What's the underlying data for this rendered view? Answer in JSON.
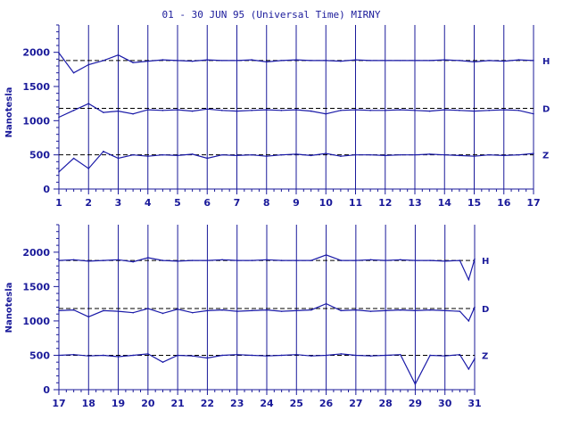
{
  "chart_data": {
    "type": "line",
    "title": "01 - 30 JUN 95 (Universal Time) MIRNY",
    "colors": {
      "axis": "#1a1a9a",
      "trace": "#1a1aa8",
      "baseline": "#000000",
      "background": "#ffffff"
    },
    "panels": [
      {
        "ylabel": "Nanotesla",
        "ylim": [
          0,
          2400
        ],
        "yticks": [
          0,
          500,
          1000,
          1500,
          2000
        ],
        "xlim": [
          1,
          17
        ],
        "xticks": [
          1,
          2,
          3,
          4,
          5,
          6,
          7,
          8,
          9,
          10,
          11,
          12,
          13,
          14,
          15,
          16,
          17
        ],
        "grid": true,
        "series": [
          {
            "name": "H",
            "baseline": 1880,
            "x": [
              1,
              1.5,
              2,
              2.5,
              3,
              3.5,
              4,
              4.5,
              5,
              5.5,
              6,
              6.5,
              7,
              7.5,
              8,
              8.5,
              9,
              9.5,
              10,
              10.5,
              11,
              11.5,
              12,
              12.5,
              13,
              13.5,
              14,
              14.5,
              15,
              15.5,
              16,
              16.5,
              17
            ],
            "values": [
              1990,
              1700,
              1820,
              1880,
              1960,
              1850,
              1870,
              1890,
              1880,
              1870,
              1890,
              1880,
              1880,
              1890,
              1860,
              1880,
              1890,
              1880,
              1880,
              1870,
              1890,
              1880,
              1880,
              1880,
              1880,
              1880,
              1890,
              1880,
              1860,
              1880,
              1870,
              1890,
              1880
            ]
          },
          {
            "name": "D",
            "baseline": 1180,
            "x": [
              1,
              1.5,
              2,
              2.5,
              3,
              3.5,
              4,
              4.5,
              5,
              5.5,
              6,
              6.5,
              7,
              7.5,
              8,
              8.5,
              9,
              9.5,
              10,
              10.5,
              11,
              11.5,
              12,
              12.5,
              13,
              13.5,
              14,
              14.5,
              15,
              15.5,
              16,
              16.5,
              17
            ],
            "values": [
              1050,
              1150,
              1250,
              1120,
              1140,
              1100,
              1160,
              1150,
              1160,
              1140,
              1170,
              1150,
              1140,
              1150,
              1160,
              1150,
              1160,
              1140,
              1100,
              1150,
              1160,
              1150,
              1150,
              1160,
              1150,
              1140,
              1160,
              1150,
              1140,
              1150,
              1160,
              1150,
              1100
            ]
          },
          {
            "name": "Z",
            "baseline": 500,
            "x": [
              1,
              1.5,
              2,
              2.5,
              3,
              3.5,
              4,
              4.5,
              5,
              5.5,
              6,
              6.5,
              7,
              7.5,
              8,
              8.5,
              9,
              9.5,
              10,
              10.5,
              11,
              11.5,
              12,
              12.5,
              13,
              13.5,
              14,
              14.5,
              15,
              15.5,
              16,
              16.5,
              17
            ],
            "values": [
              250,
              450,
              300,
              550,
              450,
              500,
              480,
              500,
              490,
              510,
              450,
              500,
              490,
              500,
              480,
              500,
              510,
              490,
              520,
              480,
              500,
              500,
              490,
              500,
              500,
              510,
              500,
              490,
              480,
              500,
              490,
              500,
              520
            ]
          }
        ]
      },
      {
        "ylabel": "Nanotesla",
        "ylim": [
          0,
          2400
        ],
        "yticks": [
          0,
          500,
          1000,
          1500,
          2000
        ],
        "xlim": [
          17,
          31
        ],
        "xticks": [
          17,
          18,
          19,
          20,
          21,
          22,
          23,
          24,
          25,
          26,
          27,
          28,
          29,
          30,
          31
        ],
        "grid": true,
        "series": [
          {
            "name": "H",
            "baseline": 1880,
            "x": [
              17,
              17.5,
              18,
              18.5,
              19,
              19.5,
              20,
              20.5,
              21,
              21.5,
              22,
              22.5,
              23,
              23.5,
              24,
              24.5,
              25,
              25.5,
              26,
              26.5,
              27,
              27.5,
              28,
              28.5,
              29,
              29.5,
              30,
              30.5,
              30.8,
              31
            ],
            "values": [
              1880,
              1890,
              1870,
              1880,
              1890,
              1860,
              1920,
              1880,
              1870,
              1880,
              1880,
              1890,
              1880,
              1880,
              1890,
              1880,
              1880,
              1880,
              1960,
              1880,
              1880,
              1890,
              1880,
              1890,
              1880,
              1880,
              1870,
              1880,
              1600,
              1900
            ]
          },
          {
            "name": "D",
            "baseline": 1180,
            "x": [
              17,
              17.5,
              18,
              18.5,
              19,
              19.5,
              20,
              20.5,
              21,
              21.5,
              22,
              22.5,
              23,
              23.5,
              24,
              24.5,
              25,
              25.5,
              26,
              26.5,
              27,
              27.5,
              28,
              28.5,
              29,
              29.5,
              30,
              30.5,
              30.8,
              31
            ],
            "values": [
              1150,
              1160,
              1060,
              1150,
              1140,
              1120,
              1180,
              1110,
              1170,
              1120,
              1150,
              1160,
              1140,
              1150,
              1160,
              1140,
              1150,
              1160,
              1250,
              1150,
              1160,
              1140,
              1150,
              1160,
              1150,
              1160,
              1150,
              1140,
              1000,
              1200
            ]
          },
          {
            "name": "Z",
            "baseline": 500,
            "x": [
              17,
              17.5,
              18,
              18.5,
              19,
              19.5,
              20,
              20.5,
              21,
              21.5,
              22,
              22.5,
              23,
              23.5,
              24,
              24.5,
              25,
              25.5,
              26,
              26.5,
              27,
              27.5,
              28,
              28.5,
              29,
              29.5,
              30,
              30.5,
              30.8,
              31
            ],
            "values": [
              500,
              510,
              490,
              500,
              480,
              500,
              520,
              400,
              500,
              490,
              460,
              500,
              510,
              500,
              490,
              500,
              510,
              490,
              500,
              520,
              500,
              490,
              500,
              510,
              80,
              500,
              490,
              510,
              300,
              450
            ]
          }
        ]
      }
    ]
  }
}
